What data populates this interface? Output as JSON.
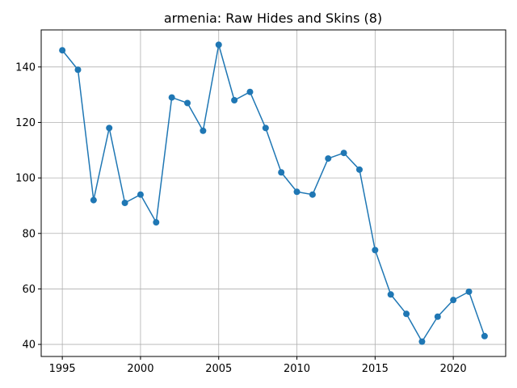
{
  "chart_data": {
    "type": "line",
    "title": "armenia: Raw Hides and Skins (8)",
    "xlabel": "",
    "ylabel": "",
    "x": [
      1995,
      1996,
      1997,
      1998,
      1999,
      2000,
      2001,
      2002,
      2003,
      2004,
      2005,
      2006,
      2007,
      2008,
      2009,
      2010,
      2011,
      2012,
      2013,
      2014,
      2015,
      2016,
      2017,
      2018,
      2019,
      2020,
      2021,
      2022
    ],
    "series": [
      {
        "values": [
          146,
          139,
          92,
          118,
          91,
          94,
          84,
          129,
          127,
          117,
          148,
          128,
          131,
          118,
          102,
          95,
          94,
          107,
          109,
          103,
          74,
          58,
          51,
          41,
          50,
          56,
          59,
          43
        ],
        "color": "#1f77b4"
      }
    ],
    "xlim": [
      1993.65,
      2023.35
    ],
    "ylim": [
      35.65,
      153.35
    ],
    "xticks": [
      1995,
      2000,
      2005,
      2010,
      2015,
      2020
    ],
    "yticks": [
      40,
      60,
      80,
      100,
      120,
      140
    ],
    "grid": true,
    "marker": "circle"
  }
}
